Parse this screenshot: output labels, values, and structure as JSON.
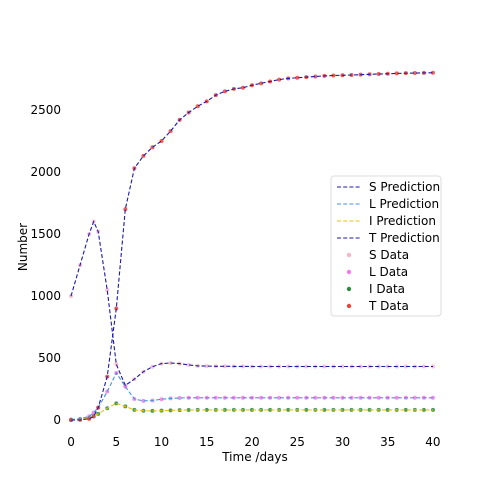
{
  "chart_data": {
    "type": "line",
    "xlabel": "Time /days",
    "ylabel": "Number",
    "xlim": [
      -1,
      41
    ],
    "ylim": [
      -80,
      3000
    ],
    "xticks": [
      0,
      5,
      10,
      15,
      20,
      25,
      30,
      35,
      40
    ],
    "yticks": [
      0,
      500,
      1000,
      1500,
      2000,
      2500
    ],
    "grid": false,
    "legend_position": "center-right",
    "x": [
      0,
      1,
      2,
      2.5,
      3,
      4,
      5,
      6,
      7,
      8,
      9,
      10,
      11,
      12,
      13,
      14,
      15,
      16,
      17,
      18,
      19,
      20,
      21,
      22,
      23,
      24,
      25,
      26,
      27,
      28,
      29,
      30,
      31,
      32,
      33,
      34,
      35,
      36,
      37,
      38,
      39,
      40
    ],
    "series": [
      {
        "name": "S Prediction",
        "kind": "line",
        "color": "#1a1aa6",
        "values": [
          1000,
          1250,
          1500,
          1600,
          1520,
          1050,
          450,
          280,
          330,
          390,
          430,
          455,
          460,
          455,
          445,
          437,
          435,
          434,
          434,
          433,
          433,
          432,
          432,
          432,
          432,
          432,
          432,
          432,
          432,
          432,
          432,
          432,
          432,
          432,
          432,
          432,
          432,
          432,
          432,
          432,
          432,
          432
        ]
      },
      {
        "name": "L Prediction",
        "kind": "line",
        "color": "#4a90e2",
        "values": [
          5,
          10,
          30,
          60,
          100,
          230,
          380,
          270,
          170,
          155,
          158,
          168,
          175,
          178,
          180,
          180,
          180,
          180,
          180,
          180,
          180,
          180,
          180,
          180,
          180,
          180,
          180,
          180,
          180,
          180,
          180,
          180,
          180,
          180,
          180,
          180,
          180,
          180,
          180,
          180,
          180,
          180
        ]
      },
      {
        "name": "I Prediction",
        "kind": "line",
        "color": "#e8c400",
        "values": [
          2,
          5,
          15,
          30,
          50,
          95,
          135,
          110,
          82,
          75,
          74,
          76,
          78,
          80,
          81,
          82,
          82,
          82,
          82,
          82,
          82,
          82,
          82,
          82,
          82,
          82,
          82,
          82,
          82,
          82,
          82,
          82,
          82,
          82,
          82,
          82,
          82,
          82,
          82,
          82,
          82,
          82
        ]
      },
      {
        "name": "T Prediction",
        "kind": "line",
        "color": "#1a1aa6",
        "values": [
          0,
          2,
          10,
          30,
          100,
          350,
          900,
          1700,
          2030,
          2130,
          2200,
          2250,
          2330,
          2420,
          2480,
          2530,
          2570,
          2620,
          2650,
          2670,
          2680,
          2700,
          2715,
          2730,
          2745,
          2755,
          2760,
          2765,
          2770,
          2775,
          2778,
          2780,
          2782,
          2785,
          2788,
          2790,
          2792,
          2795,
          2797,
          2798,
          2799,
          2800
        ]
      },
      {
        "name": "S Data",
        "kind": "scatter",
        "color": "#f7b6c8",
        "ref": 0
      },
      {
        "name": "L Data",
        "kind": "scatter",
        "color": "#f07ee8",
        "ref": 1
      },
      {
        "name": "I Data",
        "kind": "scatter",
        "color": "#2e8b3c",
        "ref": 2
      },
      {
        "name": "T Data",
        "kind": "scatter",
        "color": "#f0403c",
        "ref": 3
      }
    ]
  }
}
